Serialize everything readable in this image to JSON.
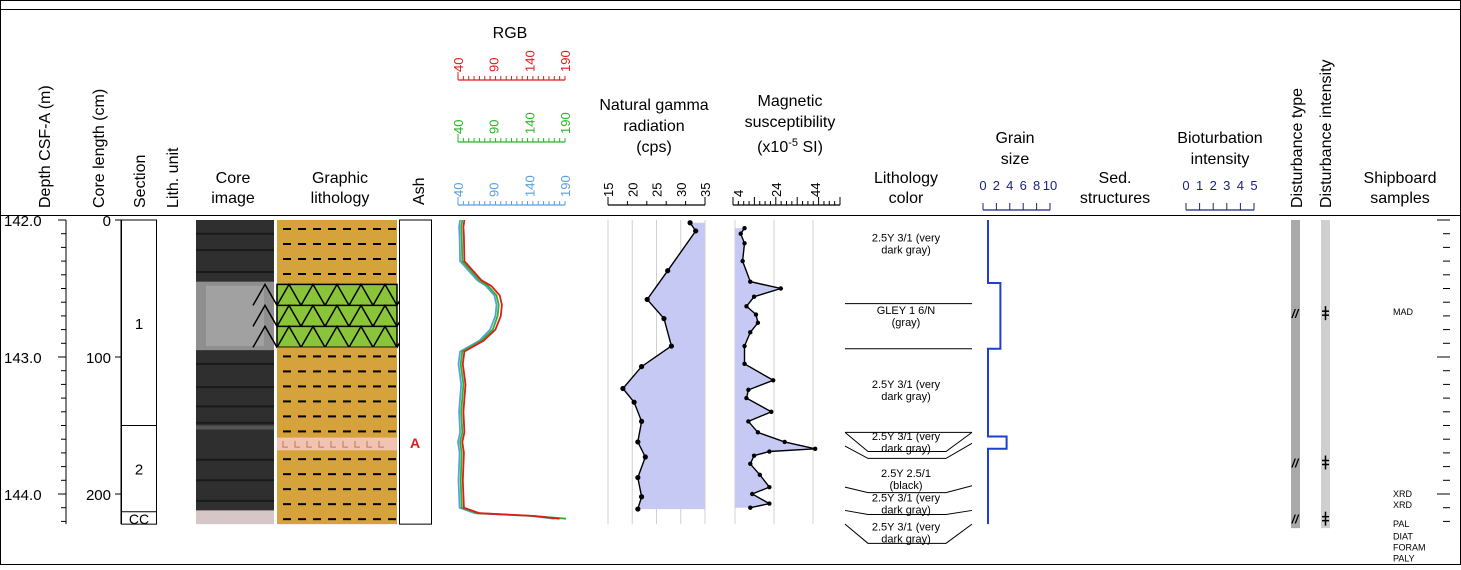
{
  "header": {
    "depth_label": "Depth CSF-A (m)",
    "core_length_label": "Core length (cm)",
    "section_label": "Section",
    "lith_unit_label": "Lith. unit",
    "core_image_label": [
      "Core",
      "image"
    ],
    "graphic_lithology_label": [
      "Graphic",
      "lithology"
    ],
    "ash_label": "Ash",
    "rgb_label": "RGB",
    "ngr_label": [
      "Natural gamma",
      "radiation",
      "(cps)"
    ],
    "ms_label": [
      "Magnetic",
      "susceptibility",
      "(x10",
      "-5",
      " SI)"
    ],
    "lithology_color_label": [
      "Lithology",
      "color"
    ],
    "grain_size_label": [
      "Grain",
      "size"
    ],
    "sed_structures_label": [
      "Sed.",
      "structures"
    ],
    "bioturbation_label": [
      "Bioturbation",
      "intensity"
    ],
    "disturbance_type_label": "Disturbance type",
    "disturbance_intensity_label": "Disturbance intensity",
    "shipboard_samples_label": [
      "Shipboard",
      "samples"
    ]
  },
  "scales": {
    "rgb_red_ticks": [
      "40",
      "90",
      "140",
      "190"
    ],
    "rgb_green_ticks": [
      "40",
      "90",
      "140",
      "190"
    ],
    "rgb_blue_ticks": [
      "40",
      "90",
      "140",
      "190"
    ],
    "ngr_ticks": [
      "15",
      "20",
      "25",
      "30",
      "35"
    ],
    "ms_ticks": [
      "4",
      "24",
      "44"
    ],
    "grain_ticks": [
      "0",
      "2",
      "4",
      "6",
      "8",
      "10"
    ],
    "bioturbation_ticks": [
      "0",
      "1",
      "2",
      "3",
      "4",
      "5"
    ]
  },
  "colors": {
    "red_channel": "#e01b1b",
    "green_channel": "#2ab52a",
    "blue_channel": "#5a9fe0",
    "ngr_fill": "#c7c9f5",
    "ms_fill": "#c7c9f5",
    "grain_line": "#1f3fd1",
    "navy_scale": "#1a237e",
    "sand_lithology": "#d6a23c",
    "green_lithology": "#8ac43a",
    "ash_layer": "#f2c3b3",
    "ash_marker": "#e01b1b"
  },
  "depth_axis": {
    "labels": [
      {
        "depth": 142.0,
        "text": "142.0"
      },
      {
        "depth": 143.0,
        "text": "143.0"
      },
      {
        "depth": 144.0,
        "text": "144.0"
      }
    ],
    "core_length_labels": [
      {
        "depth": 142.0,
        "text": "0"
      },
      {
        "depth": 143.0,
        "text": "100"
      },
      {
        "depth": 144.0,
        "text": "200"
      }
    ],
    "top_depth": 142.0,
    "bottom_depth": 144.22
  },
  "sections": [
    {
      "label": "1",
      "top": 142.0,
      "bottom": 143.5
    },
    {
      "label": "2",
      "top": 143.5,
      "bottom": 144.13
    },
    {
      "label": "CC",
      "top": 144.13,
      "bottom": 144.22
    }
  ],
  "lithology_layers": [
    {
      "type": "mud",
      "top": 142.0,
      "bottom": 142.47
    },
    {
      "type": "green-triangles",
      "top": 142.47,
      "bottom": 142.93
    },
    {
      "type": "mud",
      "top": 142.93,
      "bottom": 143.59
    },
    {
      "type": "ash",
      "top": 143.59,
      "bottom": 143.68
    },
    {
      "type": "mud",
      "top": 143.68,
      "bottom": 144.22
    }
  ],
  "ash": {
    "marker": "A",
    "depth": 143.62
  },
  "lithology_color": [
    {
      "text": "2.5Y 3/1 (very dark gray)",
      "depth": 142.17
    },
    {
      "text": "GLEY 1 6/N (gray)",
      "depth": 142.7
    },
    {
      "text": "2.5Y 3/1 (very dark gray)",
      "depth": 143.24
    },
    {
      "text": "2.5Y 3/1 (very dark gray)",
      "depth": 143.62
    },
    {
      "text": "2.5Y 2.5/1 (black)",
      "depth": 143.89
    },
    {
      "text": "2.5Y 3/1 (very dark gray)",
      "depth": 144.07
    },
    {
      "text": "2.5Y 3/1 (very dark gray)",
      "depth": 144.28
    }
  ],
  "shipboard_samples": [
    {
      "text": "MAD",
      "depth": 142.67
    },
    {
      "text": "XRD",
      "depth": 144.0
    },
    {
      "text": "XRD",
      "depth": 144.08
    },
    {
      "text": "PAL",
      "depth": 144.22
    },
    {
      "text": "DIAT",
      "depth": 144.31
    },
    {
      "text": "FORAM",
      "depth": 144.39
    },
    {
      "text": "PALY",
      "depth": 144.47
    }
  ],
  "disturbance_marks": [
    {
      "type_symbol": "//",
      "intensity_symbol": "╪",
      "depth": 142.68
    },
    {
      "type_symbol": "//",
      "intensity_symbol": "╪",
      "depth": 143.77
    },
    {
      "type_symbol": "//",
      "intensity_symbol": "╪",
      "depth": 144.18
    }
  ],
  "chart_data": [
    {
      "type": "line",
      "title": "Natural gamma radiation (cps)",
      "xlim": [
        12,
        38
      ],
      "y_depth": [
        142.02,
        142.08,
        142.37,
        142.58,
        142.72,
        142.92,
        143.07,
        143.23,
        143.33,
        143.47,
        143.62,
        143.73,
        143.88,
        144.02,
        144.11
      ],
      "x": [
        34,
        35.5,
        28,
        22.5,
        27,
        29,
        21,
        16,
        19,
        21,
        20,
        22,
        20,
        21,
        20
      ]
    },
    {
      "type": "line",
      "title": "Magnetic susceptibility (x10-5 SI)",
      "xlim": [
        0,
        55
      ],
      "y_depth": [
        142.06,
        142.1,
        142.17,
        142.3,
        142.45,
        142.5,
        142.56,
        142.63,
        142.69,
        142.75,
        142.82,
        142.92,
        143.05,
        143.17,
        143.24,
        143.3,
        143.4,
        143.47,
        143.55,
        143.62,
        143.67,
        143.69,
        143.72,
        143.78,
        143.86,
        143.95,
        144.0,
        144.07,
        144.1
      ],
      "x": [
        5,
        3,
        5,
        4,
        8,
        24,
        10,
        6,
        11,
        12,
        8,
        5,
        5,
        20,
        7,
        6,
        19,
        7,
        12,
        26,
        42,
        18,
        10,
        8,
        13,
        18,
        9,
        18,
        8
      ]
    },
    {
      "type": "line",
      "title": "RGB",
      "xlim": [
        30,
        230
      ],
      "y_depth": [
        142.0,
        142.05,
        142.12,
        142.3,
        142.44,
        142.48,
        142.55,
        142.62,
        142.7,
        142.8,
        142.88,
        142.96,
        143.05,
        143.2,
        143.4,
        143.55,
        143.62,
        143.7,
        143.9,
        144.1,
        144.14,
        144.16,
        144.18
      ],
      "series": [
        {
          "values": [
            42,
            40,
            41,
            42,
            74,
            92,
            108,
            112,
            110,
            100,
            78,
            42,
            39,
            44,
            40,
            42,
            38,
            41,
            39,
            41,
            70,
            170,
            220
          ]
        },
        {
          "values": [
            38,
            36,
            37,
            38,
            70,
            86,
            102,
            106,
            104,
            95,
            74,
            38,
            35,
            40,
            36,
            38,
            34,
            37,
            35,
            37,
            66,
            168,
            232
          ]
        },
        {
          "values": [
            34,
            32,
            33,
            34,
            66,
            82,
            98,
            102,
            100,
            90,
            70,
            34,
            31,
            36,
            32,
            34,
            30,
            33,
            31,
            33,
            62,
            164,
            210
          ]
        }
      ]
    },
    {
      "type": "line",
      "title": "Grain size",
      "xlim": [
        0,
        10
      ],
      "y_depth": [
        142.0,
        142.46,
        142.46,
        142.94,
        142.94,
        143.58,
        143.58,
        143.67,
        143.67,
        144.22
      ],
      "x": [
        0,
        0,
        2,
        2,
        0,
        0,
        3,
        3,
        0,
        0
      ]
    }
  ]
}
